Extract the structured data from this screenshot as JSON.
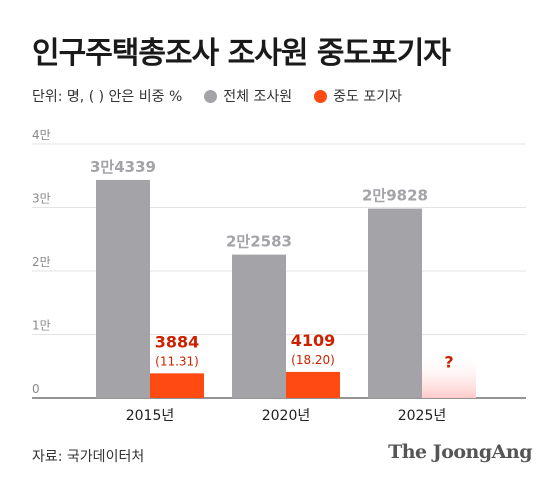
{
  "title": "인구주택총조사 조사원 중도포기자",
  "unit_note": "단위: 명, ( ) 안은 비중 %",
  "source": "자료: 국가데이터처",
  "logo": "The JoongAng",
  "colors": {
    "total": "#a3a3a8",
    "dropout": "#ff4a12",
    "unknown": "#ffd9d9",
    "value_red": "#cc2200"
  },
  "chart_data": {
    "type": "bar",
    "categories": [
      "2015년",
      "2020년",
      "2025년"
    ],
    "series": [
      {
        "name": "전체 조사원",
        "values": [
          34339,
          22583,
          29828
        ],
        "labels": [
          "3만4339",
          "2만2583",
          "2만9828"
        ]
      },
      {
        "name": "중도 포기자",
        "values": [
          3884,
          4109,
          null
        ],
        "labels": [
          "3884",
          "4109",
          "?"
        ],
        "shares": [
          "(11.31)",
          "(18.20)",
          ""
        ]
      }
    ],
    "ylim": [
      0,
      40000
    ],
    "yticks": [
      0,
      10000,
      20000,
      30000,
      40000
    ],
    "ytick_labels": [
      "0",
      "1만",
      "2만",
      "3만",
      "4만"
    ],
    "grid": true,
    "legend": "top-left"
  }
}
